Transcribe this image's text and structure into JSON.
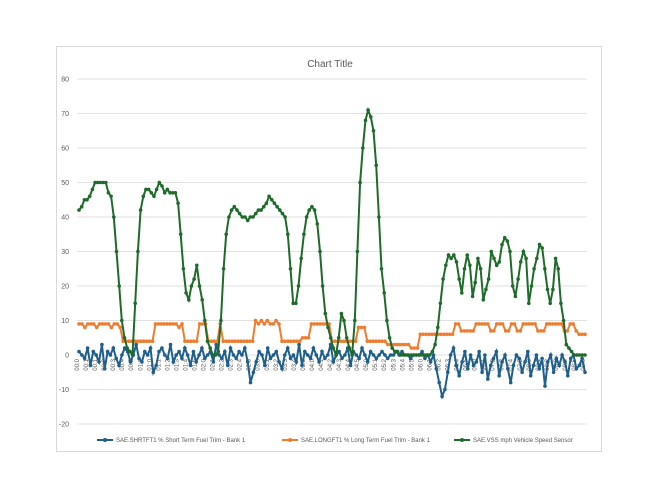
{
  "chart_data": {
    "type": "line",
    "title": "Chart Title",
    "ylim": [
      -20,
      80
    ],
    "ytick_step": 10,
    "grid": "horizontal",
    "legend_position": "bottom",
    "x_tick_labels": [
      "00:0",
      "00:1",
      "00:1",
      "00:2",
      "00:3",
      "00:4",
      "00:5",
      "01:0",
      "01:0",
      "01:1",
      "01:2",
      "01:3",
      "01:4",
      "01:5",
      "02:0",
      "02:1",
      "02:2",
      "02:3",
      "02:4",
      "02:5",
      "03:0",
      "03:1",
      "03:2",
      "03:3",
      "03:4",
      "03:5",
      "04:0",
      "04:1",
      "04:2",
      "04:3",
      "04:4",
      "04:5",
      "05:0",
      "05:1",
      "05:2",
      "05:3",
      "05:4",
      "05:5",
      "06:0",
      "06:1",
      "06:2",
      "06:3",
      "06:4",
      "06:5",
      "07:0",
      "07:1",
      "07:2",
      "07:3",
      "07:4",
      "07:5",
      "08:0",
      "08:1",
      "08:2",
      "08:3",
      "08:4",
      "08:5",
      "09:0"
    ],
    "series": [
      {
        "name": "SAE.SHRTFT1 % Short Term Fuel Trim - Bank 1",
        "color": "#1f5f8b",
        "values": [
          1,
          0,
          -1,
          2,
          -3,
          1,
          0,
          -2,
          3,
          -4,
          1,
          0,
          2,
          -1,
          -3,
          0,
          2,
          1,
          -2,
          0,
          3,
          -1,
          -2,
          1,
          0,
          2,
          -5,
          -3,
          1,
          2,
          0,
          -1,
          3,
          -2,
          0,
          1,
          -1,
          2,
          0,
          -3,
          1,
          -2,
          0,
          2,
          -1,
          0,
          1,
          -2,
          3,
          0,
          -1,
          1,
          -3,
          2,
          0,
          -1,
          1,
          0,
          2,
          -2,
          -8,
          -5,
          -2,
          1,
          0,
          -3,
          2,
          -1,
          0,
          1,
          -2,
          -4,
          0,
          2,
          -1,
          0,
          -2,
          3,
          -3,
          1,
          0,
          -1,
          2,
          0,
          -2,
          1,
          -1,
          0,
          3,
          -2,
          0,
          1,
          -1,
          0,
          2,
          -3,
          1,
          0,
          -1,
          2,
          0,
          -2,
          1,
          0,
          -1,
          0,
          1,
          0,
          -1,
          0,
          0,
          1,
          0,
          1,
          0,
          0,
          -1,
          0,
          0,
          0,
          1,
          -1,
          0,
          -2,
          0,
          -4,
          -8,
          -12,
          -10,
          -5,
          0,
          2,
          -3,
          -6,
          -2,
          1,
          -4,
          0,
          -3,
          -2,
          1,
          -5,
          0,
          -7,
          -3,
          -1,
          1,
          -6,
          -2,
          0,
          -4,
          -8,
          -3,
          0,
          -1,
          -5,
          -2,
          1,
          -6,
          -3,
          0,
          -4,
          -1,
          -9,
          -2,
          0,
          -5,
          -1,
          -3,
          0,
          -2,
          -6,
          -1,
          0,
          -4,
          -3,
          -1,
          -5
        ]
      },
      {
        "name": "SAE.LONGFT1 % Long Term Fuel Trim - Bank 1",
        "color": "#ed7d31",
        "values": [
          9,
          9,
          8,
          9,
          9,
          9,
          8,
          9,
          9,
          9,
          9,
          8,
          9,
          9,
          8,
          4,
          4,
          4,
          4,
          4,
          4,
          4,
          4,
          4,
          4,
          4,
          9,
          9,
          9,
          9,
          9,
          9,
          9,
          9,
          8,
          9,
          4,
          4,
          4,
          4,
          4,
          9,
          9,
          9,
          4,
          4,
          4,
          4,
          9,
          4,
          4,
          4,
          4,
          4,
          4,
          4,
          4,
          4,
          4,
          4,
          10,
          9,
          10,
          9,
          10,
          9,
          9,
          10,
          9,
          4,
          4,
          4,
          4,
          4,
          4,
          4,
          5,
          5,
          5,
          9,
          9,
          9,
          9,
          9,
          9,
          9,
          4,
          4,
          4,
          4,
          4,
          4,
          4,
          4,
          4,
          8,
          8,
          8,
          4,
          4,
          4,
          4,
          4,
          4,
          4,
          3,
          3,
          3,
          3,
          3,
          3,
          3,
          3,
          2,
          2,
          2,
          6,
          6,
          6,
          6,
          6,
          6,
          6,
          6,
          6,
          6,
          6,
          6,
          9,
          9,
          7,
          7,
          7,
          7,
          7,
          9,
          9,
          9,
          9,
          9,
          7,
          7,
          9,
          9,
          9,
          7,
          7,
          9,
          9,
          7,
          7,
          9,
          9,
          9,
          9,
          9,
          7,
          7,
          7,
          9,
          9,
          9,
          9,
          9,
          9,
          7,
          7,
          9,
          9,
          7,
          6,
          6,
          6
        ]
      },
      {
        "name": "SAE.VSS mph Vehicle Speed Sensor",
        "color": "#1e6b2a",
        "values": [
          42,
          43,
          45,
          45,
          46,
          48,
          50,
          50,
          50,
          50,
          50,
          47,
          46,
          40,
          30,
          20,
          10,
          5,
          2,
          1,
          0,
          15,
          30,
          42,
          46,
          48,
          48,
          47,
          46,
          48,
          50,
          49,
          47,
          48,
          47,
          47,
          47,
          44,
          35,
          25,
          18,
          16,
          20,
          22,
          26,
          20,
          16,
          10,
          4,
          2,
          0,
          0,
          1,
          10,
          25,
          35,
          40,
          42,
          43,
          42,
          41,
          40,
          40,
          39,
          40,
          40,
          41,
          42,
          42,
          43,
          44,
          46,
          45,
          44,
          43,
          42,
          41,
          40,
          35,
          25,
          15,
          15,
          20,
          28,
          35,
          40,
          42,
          43,
          42,
          38,
          30,
          20,
          12,
          8,
          5,
          2,
          0,
          5,
          12,
          10,
          5,
          2,
          0,
          10,
          30,
          50,
          60,
          68,
          71,
          69,
          65,
          55,
          40,
          25,
          18,
          10,
          5,
          2,
          1,
          1,
          0,
          0,
          0,
          0,
          0,
          0,
          0,
          0,
          0,
          0,
          0,
          0,
          1,
          3,
          8,
          15,
          22,
          26,
          29,
          28,
          29,
          27,
          22,
          18,
          25,
          29,
          26,
          17,
          21,
          28,
          25,
          16,
          19,
          22,
          30,
          28,
          26,
          27,
          32,
          34,
          33,
          30,
          20,
          17,
          22,
          27,
          30,
          28,
          15,
          20,
          25,
          28,
          32,
          31,
          25,
          19,
          15,
          19,
          28,
          25,
          15,
          10,
          3,
          2,
          1,
          0,
          0,
          0,
          0,
          0
        ]
      }
    ]
  }
}
